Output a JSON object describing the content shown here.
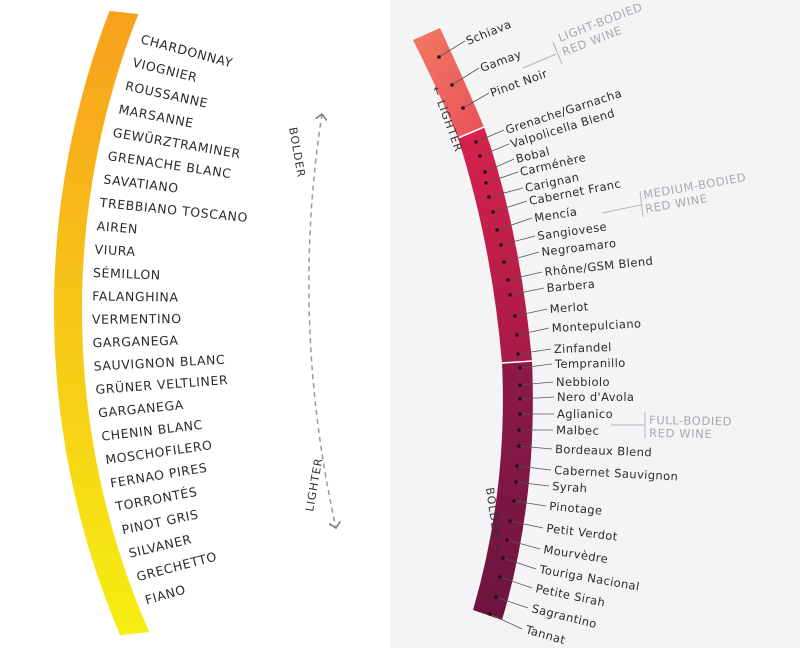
{
  "white_wines": {
    "items": [
      "CHARDONNAY",
      "VIOGNIER",
      "ROUSSANNE",
      "MARSANNE",
      "GEWÜRZTRAMINER",
      "GRENACHE BLANC",
      "SAVATIANO",
      "TREBBIANO TOSCANO",
      "AIREN",
      "VIURA",
      "SÉMILLON",
      "FALANGHINA",
      "VERMENTINO",
      "GARGANEGA",
      "SAUVIGNON BLANC",
      "GRÜNER VELTLINER",
      "GARGANEGA",
      "CHENIN BLANC",
      "MOSCHOFILERO",
      "FERNAO PIRES",
      "TORRONTÉS",
      "PINOT GRIS",
      "SILVANER",
      "GRECHETTO",
      "FIANO"
    ],
    "arrow_top_label": "BOLDER",
    "arrow_bottom_label": "LIGHTER",
    "colors": {
      "top": "#f7a01c",
      "bottom": "#f6ee12"
    }
  },
  "red_wines": {
    "items": [
      "Schiava",
      "Gamay",
      "Pinot Noir",
      "Grenache/Garnacha",
      "Valpolicella Blend",
      "Bobal",
      "Carménère",
      "Carignan",
      "Cabernet Franc",
      "Mencía",
      "Sangiovese",
      "Negroamaro",
      "Rhône/GSM Blend",
      "Barbera",
      "Merlot",
      "Montepulciano",
      "Zinfandel",
      "Tempranillo",
      "Nebbiolo",
      "Nero d'Avola",
      "Aglianico",
      "Malbec",
      "Bordeaux Blend",
      "Cabernet Sauvignon",
      "Syrah",
      "Pinotage",
      "Petit Verdot",
      "Mourvèdre",
      "Touriga Nacional",
      "Petite Sirah",
      "Sagrantino",
      "Tannat"
    ],
    "lighter_label": "← LIGHTER",
    "bolder_label": "BOLDER →",
    "groups": [
      {
        "line1": "LIGHT-BODIED",
        "line2": "RED WINE"
      },
      {
        "line1": "MEDIUM-BODIED",
        "line2": "RED WINE"
      },
      {
        "line1": "FULL-BODIED",
        "line2": "RED WINE"
      }
    ],
    "colors": {
      "light": "#ee6b5c",
      "medium": "#c21f4b",
      "full": "#7e1743"
    }
  }
}
